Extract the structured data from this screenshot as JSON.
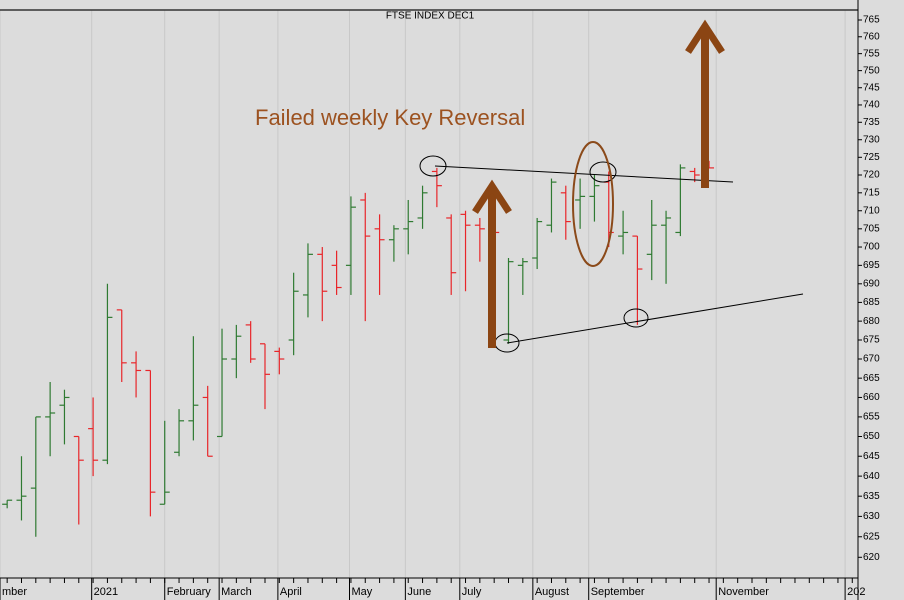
{
  "chart_data": {
    "type": "ohlc",
    "title": "FTSE INDEX DEC1",
    "annotations": [
      "Failed weekly Key Reversal"
    ],
    "x": [
      0,
      1,
      2,
      3,
      4,
      5,
      6,
      7,
      8,
      9,
      10,
      11,
      12,
      13,
      14,
      15,
      16,
      17,
      18,
      19,
      20,
      21,
      22,
      23,
      24,
      25,
      26,
      27,
      28,
      29,
      30,
      31,
      32,
      33,
      34,
      35,
      36,
      37,
      38,
      39,
      40,
      41,
      42,
      43,
      44,
      45,
      46,
      47,
      48,
      49
    ],
    "series": [
      {
        "up_color": "#2f7a32",
        "down_color": "#e8262a",
        "open": [
          633,
          634,
          637,
          655,
          658,
          650,
          652,
          644,
          683,
          669,
          667,
          633,
          646,
          654,
          660,
          650,
          670,
          679,
          674,
          672,
          675,
          687,
          698,
          695,
          695,
          713,
          705,
          702,
          705,
          708,
          721,
          708,
          709,
          706,
          707,
          675,
          695,
          697,
          706,
          715,
          713,
          714,
          718,
          703,
          703,
          698,
          706,
          704,
          721,
          723
        ],
        "high": [
          634,
          645,
          655,
          664,
          662,
          650,
          660,
          690,
          683,
          672,
          667,
          654,
          657,
          676,
          663,
          678,
          679,
          680,
          674,
          673,
          693,
          701,
          700,
          699,
          714,
          715,
          709,
          706,
          713,
          717,
          722,
          709,
          710,
          708,
          708,
          697,
          697,
          708,
          719,
          717,
          719,
          720,
          721,
          710,
          703,
          713,
          710,
          723,
          722,
          724
        ],
        "low": [
          632,
          629,
          625,
          645,
          648,
          628,
          640,
          643,
          664,
          660,
          630,
          633,
          645,
          649,
          645,
          650,
          665,
          669,
          657,
          666,
          671,
          681,
          680,
          687,
          687,
          680,
          687,
          696,
          698,
          705,
          711,
          687,
          688,
          696,
          695,
          674,
          687,
          694,
          704,
          702,
          705,
          707,
          700,
          698,
          679,
          691,
          690,
          703,
          718,
          722
        ],
        "close": [
          634,
          635,
          655,
          656,
          660,
          644,
          644,
          681,
          669,
          667,
          636,
          636,
          654,
          658,
          645,
          670,
          676,
          670,
          666,
          670,
          688,
          698,
          688,
          689,
          711,
          703,
          702,
          705,
          707,
          715,
          717,
          693,
          706,
          705,
          704,
          696,
          696,
          707,
          718,
          707,
          714,
          717,
          704,
          704,
          694,
          706,
          708,
          722,
          720,
          722
        ]
      }
    ],
    "xlim": [
      -0.5,
      59.4
    ],
    "xticks": [
      {
        "value": -0.5,
        "label": "mber"
      },
      {
        "value": 5.9,
        "label": "2021"
      },
      {
        "value": 11,
        "label": "February"
      },
      {
        "value": 14.8,
        "label": "March"
      },
      {
        "value": 18.9,
        "label": "April"
      },
      {
        "value": 23.9,
        "label": "May"
      },
      {
        "value": 27.8,
        "label": "June"
      },
      {
        "value": 31.6,
        "label": "July"
      },
      {
        "value": 36.7,
        "label": "August"
      },
      {
        "value": 40.6,
        "label": "September"
      },
      {
        "value": 49.5,
        "label": "November"
      },
      {
        "value": 58.5,
        "label": "202"
      }
    ],
    "ylim": [
      615,
      768
    ],
    "yticks": [
      620,
      625,
      630,
      635,
      640,
      645,
      650,
      655,
      660,
      665,
      670,
      675,
      680,
      685,
      690,
      695,
      700,
      705,
      710,
      715,
      720,
      725,
      730,
      735,
      740,
      745,
      750,
      755,
      760,
      765
    ],
    "y_scale": "log",
    "y_axis_side": "right",
    "grid": "x"
  }
}
